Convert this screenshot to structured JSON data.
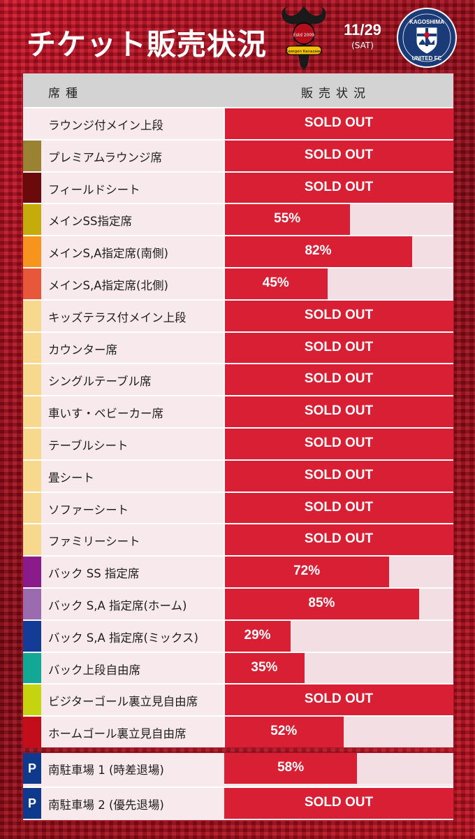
{
  "header": {
    "title": "チケット販売状況",
    "date": "11/29",
    "day": "(SAT)",
    "crest_text_top": "Estd 2009",
    "crest_text_bottom": "Zweigen Kanazawa",
    "opponent_logo_text_top": "KAGOSHIMA",
    "opponent_logo_text_bottom": "UNITED FC"
  },
  "table": {
    "col_seat": "席種",
    "col_status": "販売状況",
    "rows": [
      {
        "name": "ラウンジ付メイン上段",
        "color": "#f8e9ec",
        "status": "SOLD OUT",
        "percent": 100
      },
      {
        "name": "プレミアムラウンジ席",
        "color": "#9b8232",
        "status": "SOLD OUT",
        "percent": 100
      },
      {
        "name": "フィールドシート",
        "color": "#6a0a0a",
        "status": "SOLD OUT",
        "percent": 100
      },
      {
        "name": "メインSS指定席",
        "color": "#c6ac0a",
        "status": "55%",
        "percent": 55
      },
      {
        "name": "メインS,A指定席(南側)",
        "color": "#f7941d",
        "status": "82%",
        "percent": 82
      },
      {
        "name": "メインS,A指定席(北側)",
        "color": "#e8573a",
        "status": "45%",
        "percent": 45
      },
      {
        "name": "キッズテラス付メイン上段",
        "color": "#f7d98e",
        "status": "SOLD OUT",
        "percent": 100
      },
      {
        "name": "カウンター席",
        "color": "#f7d98e",
        "status": "SOLD OUT",
        "percent": 100
      },
      {
        "name": "シングルテーブル席",
        "color": "#f7d98e",
        "status": "SOLD OUT",
        "percent": 100
      },
      {
        "name": "車いす・ベビーカー席",
        "color": "#f7d98e",
        "status": "SOLD OUT",
        "percent": 100
      },
      {
        "name": "テーブルシート",
        "color": "#f7d98e",
        "status": "SOLD OUT",
        "percent": 100
      },
      {
        "name": "畳シート",
        "color": "#f7d98e",
        "status": "SOLD OUT",
        "percent": 100
      },
      {
        "name": "ソファーシート",
        "color": "#f7d98e",
        "status": "SOLD OUT",
        "percent": 100
      },
      {
        "name": "ファミリーシート",
        "color": "#f7d98e",
        "status": "SOLD OUT",
        "percent": 100
      },
      {
        "name": "バック SS 指定席",
        "color": "#8b1a8b",
        "status": "72%",
        "percent": 72
      },
      {
        "name": "バック S,A 指定席(ホーム)",
        "color": "#9b6bb0",
        "status": "85%",
        "percent": 85
      },
      {
        "name": "バック S,A 指定席(ミックス)",
        "color": "#123c96",
        "status": "29%",
        "percent": 29
      },
      {
        "name": "バック上段自由席",
        "color": "#12a896",
        "status": "35%",
        "percent": 35
      },
      {
        "name": "ビジターゴール裏立見自由席",
        "color": "#c5d40f",
        "status": "SOLD OUT",
        "percent": 100
      },
      {
        "name": "ホームゴール裏立見自由席",
        "color": "#c10e1a",
        "status": "52%",
        "percent": 52
      }
    ]
  },
  "parking": {
    "icon_label": "P",
    "rows": [
      {
        "name": "南駐車場 1 (時差退場)",
        "status": "58%",
        "percent": 58
      },
      {
        "name": "南駐車場 2 (優先退場)",
        "status": "SOLD OUT",
        "percent": 100
      }
    ]
  }
}
